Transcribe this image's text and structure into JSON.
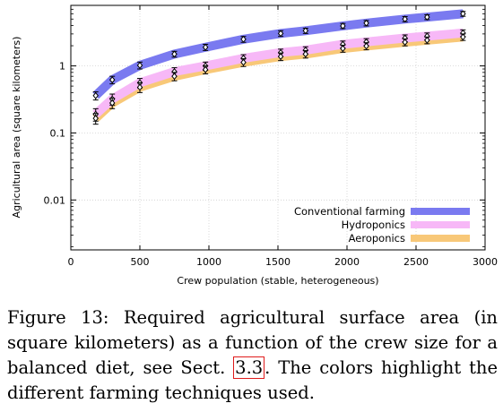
{
  "chart_data": {
    "type": "line",
    "xlabel": "Crew population (stable, heterogeneous)",
    "ylabel": "Agricultural area (square kilometers)",
    "xlim": [
      0,
      3000
    ],
    "ylim": [
      0.0018,
      8
    ],
    "yscale": "log",
    "xticks": [
      0,
      500,
      1000,
      1500,
      2000,
      2500,
      3000
    ],
    "yticks": [
      0.01,
      0.1,
      1
    ],
    "ytick_labels": [
      "0.01",
      "0.1",
      "1"
    ],
    "legend_position": "bottom-right",
    "x": [
      180,
      300,
      500,
      750,
      975,
      1250,
      1520,
      1700,
      1970,
      2140,
      2420,
      2580,
      2840
    ],
    "series": [
      {
        "name": "Conventional farming",
        "color": "#7a7af0",
        "values": [
          0.36,
          0.62,
          1.02,
          1.5,
          1.9,
          2.5,
          3.05,
          3.35,
          3.95,
          4.35,
          5.0,
          5.35,
          6.0
        ],
        "errors": [
          0.05,
          0.08,
          0.12,
          0.15,
          0.2,
          0.25,
          0.3,
          0.3,
          0.35,
          0.4,
          0.45,
          0.45,
          0.5
        ]
      },
      {
        "name": "Hydroponics",
        "color": "#f7b8f7",
        "values": [
          0.19,
          0.32,
          0.56,
          0.82,
          1.0,
          1.3,
          1.58,
          1.72,
          2.1,
          2.28,
          2.6,
          2.78,
          3.1
        ],
        "errors": [
          0.04,
          0.06,
          0.09,
          0.12,
          0.14,
          0.17,
          0.2,
          0.21,
          0.25,
          0.27,
          0.3,
          0.32,
          0.35
        ]
      },
      {
        "name": "Aeroponics",
        "color": "#f8c878",
        "values": [
          0.165,
          0.28,
          0.48,
          0.7,
          0.88,
          1.13,
          1.38,
          1.5,
          1.82,
          1.98,
          2.26,
          2.42,
          2.7
        ],
        "errors": [
          0.03,
          0.05,
          0.08,
          0.1,
          0.12,
          0.15,
          0.18,
          0.19,
          0.22,
          0.24,
          0.27,
          0.28,
          0.3
        ]
      }
    ]
  },
  "caption": {
    "before_ref": "Figure 13: Required agricultural surface area (in square kilometers) as a function of the crew size for a balanced diet, see Sect. ",
    "ref": "3.3",
    "after_ref": ". The colors highlight the different farming techniques used."
  }
}
